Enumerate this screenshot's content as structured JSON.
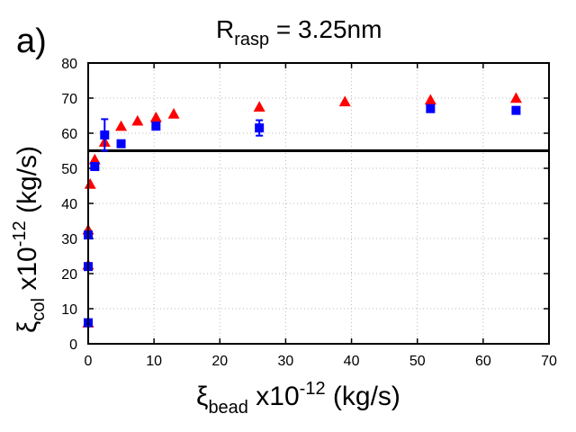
{
  "panel_label": "a)",
  "chart_data": {
    "type": "scatter",
    "title": {
      "main": "R",
      "sub": "rasp",
      "rest": " = 3.25nm"
    },
    "xlabel": {
      "symbol": "ξ",
      "sub": "bead",
      "rest": " x10",
      "sup": "-12",
      "unit": " (kg/s)"
    },
    "ylabel": {
      "symbol": "ξ",
      "sub": "col",
      "rest": " x10",
      "sup": "-12",
      "unit": " (kg/s)"
    },
    "xlim": [
      0,
      70
    ],
    "ylim": [
      0,
      80
    ],
    "xticks": [
      0,
      10,
      20,
      30,
      40,
      50,
      60,
      70
    ],
    "yticks": [
      0,
      10,
      20,
      30,
      40,
      50,
      60,
      70,
      80
    ],
    "grid": true,
    "reference_line": {
      "y": 55,
      "color": "#000000"
    },
    "series": [
      {
        "name": "triangles",
        "marker": "triangle",
        "color": "#ff0000",
        "points": [
          {
            "x": 0,
            "y": 6
          },
          {
            "x": 0,
            "y": 22.5
          },
          {
            "x": 0,
            "y": 32.5
          },
          {
            "x": 0.3,
            "y": 45.5
          },
          {
            "x": 1,
            "y": 52.5
          },
          {
            "x": 2.5,
            "y": 57.5
          },
          {
            "x": 5,
            "y": 62
          },
          {
            "x": 7.5,
            "y": 63.5
          },
          {
            "x": 10.3,
            "y": 64.5
          },
          {
            "x": 13,
            "y": 65.5
          },
          {
            "x": 26,
            "y": 67.5
          },
          {
            "x": 39,
            "y": 69
          },
          {
            "x": 52,
            "y": 69.5
          },
          {
            "x": 65,
            "y": 70
          }
        ]
      },
      {
        "name": "squares",
        "marker": "square",
        "color": "#0000ff",
        "points": [
          {
            "x": 0,
            "y": 6,
            "err": 0
          },
          {
            "x": 0,
            "y": 22,
            "err": 0
          },
          {
            "x": 0,
            "y": 31,
            "err": 0.8
          },
          {
            "x": 1,
            "y": 50.5,
            "err": 0
          },
          {
            "x": 2.5,
            "y": 59.5,
            "err": 4.5
          },
          {
            "x": 5,
            "y": 57,
            "err": 0
          },
          {
            "x": 10.3,
            "y": 62,
            "err": 0.8
          },
          {
            "x": 26,
            "y": 61.5,
            "err": 2.2
          },
          {
            "x": 52,
            "y": 67,
            "err": 0.8
          },
          {
            "x": 65,
            "y": 66.5,
            "err": 0
          }
        ]
      }
    ]
  }
}
